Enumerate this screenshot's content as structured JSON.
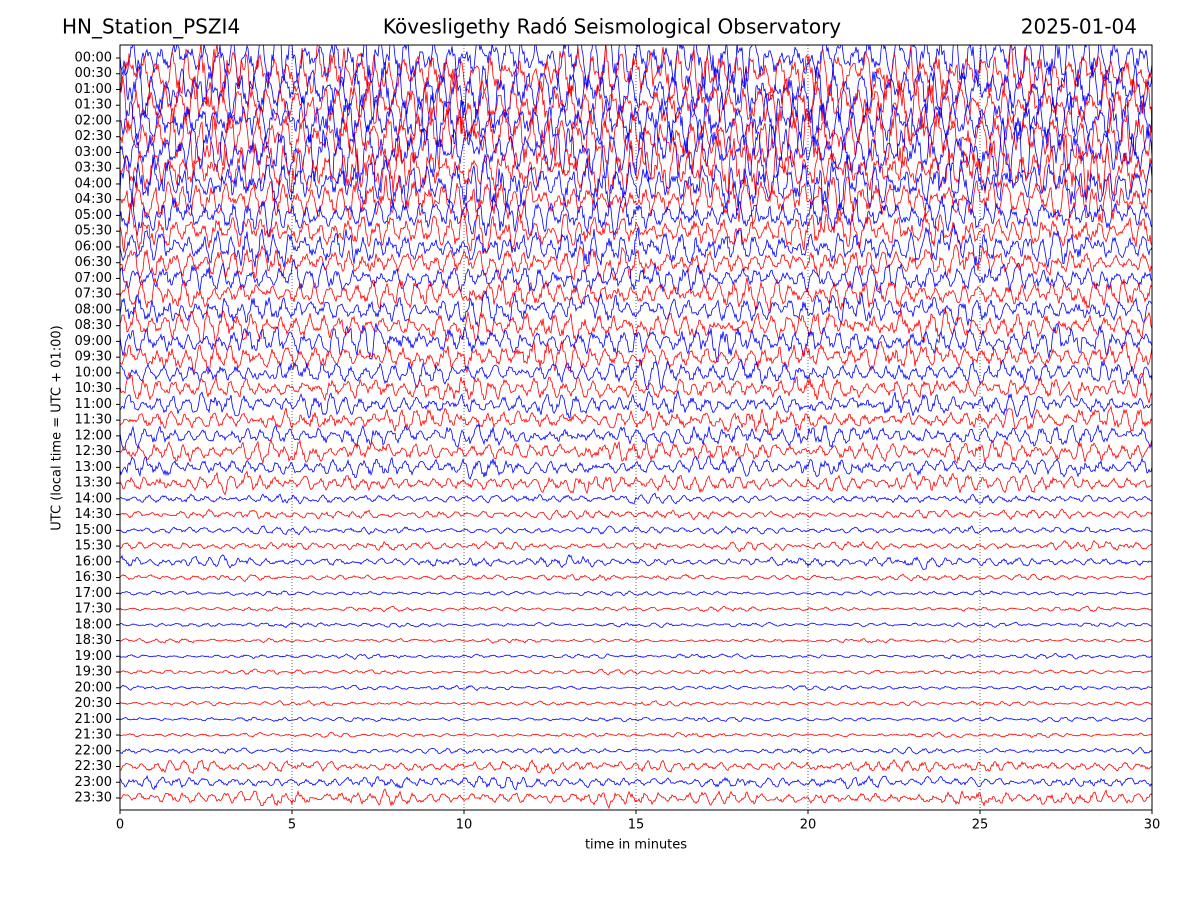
{
  "chart_data": {
    "type": "helicorder",
    "title": "Kövesligethy Radó Seismological Observatory",
    "station": "HN_Station_PSZI4",
    "date": "2025-01-04",
    "x_label": "time in minutes",
    "y_label": "UTC (local time = UTC + 01:00)",
    "xlim": [
      0,
      30
    ],
    "xticks": [
      0,
      5,
      10,
      15,
      20,
      25,
      30
    ],
    "grid": true,
    "colors": [
      "#0000ff",
      "#ff0000"
    ],
    "categories": [
      "00:00",
      "00:30",
      "01:00",
      "01:30",
      "02:00",
      "02:30",
      "03:00",
      "03:30",
      "04:00",
      "04:30",
      "05:00",
      "05:30",
      "06:00",
      "06:30",
      "07:00",
      "07:30",
      "08:00",
      "08:30",
      "09:00",
      "09:30",
      "10:00",
      "10:30",
      "11:00",
      "11:30",
      "12:00",
      "12:30",
      "13:00",
      "13:30",
      "14:00",
      "14:30",
      "15:00",
      "15:30",
      "16:00",
      "16:30",
      "17:00",
      "17:30",
      "18:00",
      "18:30",
      "19:00",
      "19:30",
      "20:00",
      "20:30",
      "21:00",
      "21:30",
      "22:00",
      "22:30",
      "23:00",
      "23:30"
    ],
    "values": [
      4,
      4,
      4,
      4,
      4,
      4,
      4,
      4,
      3.5,
      3,
      2.5,
      2.5,
      2.5,
      2,
      2,
      2,
      2,
      2,
      2,
      2,
      1.6,
      1.6,
      1.5,
      1.5,
      1.5,
      1.4,
      1.3,
      1.2,
      0.6,
      0.6,
      0.5,
      0.6,
      0.7,
      0.4,
      0.3,
      0.3,
      0.3,
      0.3,
      0.3,
      0.3,
      0.3,
      0.3,
      0.3,
      0.3,
      0.4,
      0.8,
      0.8,
      1
    ]
  }
}
